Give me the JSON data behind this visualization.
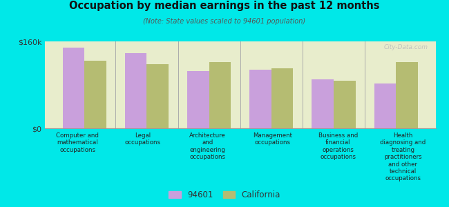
{
  "title": "Occupation by median earnings in the past 12 months",
  "subtitle": "(Note: State values scaled to 94601 population)",
  "background_outer": "#00e8e8",
  "background_inner": "#e8edcc",
  "bar_color_94601": "#c9a0dc",
  "bar_color_ca": "#b5bc72",
  "ylim": [
    0,
    160000
  ],
  "ytick_labels": [
    "$0",
    "$160k"
  ],
  "categories": [
    "Computer and\nmathematical\noccupations",
    "Legal\noccupations",
    "Architecture\nand\nengineering\noccupations",
    "Management\noccupations",
    "Business and\nfinancial\noperations\noccupations",
    "Health\ndiagnosing and\ntreating\npractitioners\nand other\ntechnical\noccupations"
  ],
  "values_94601": [
    148000,
    138000,
    105000,
    108000,
    90000,
    82000
  ],
  "values_ca": [
    125000,
    118000,
    122000,
    110000,
    88000,
    122000
  ],
  "legend_94601": "94601",
  "legend_ca": "California",
  "watermark": "City-Data.com"
}
